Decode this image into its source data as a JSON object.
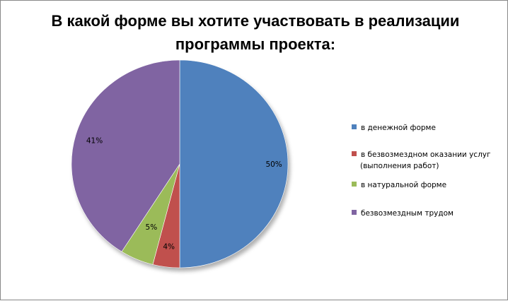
{
  "chart_data": {
    "type": "pie",
    "title": "В какой форме вы хотите участвовать в реализации программы проекта:",
    "categories": [
      "в денежной форме",
      "в безвозмездном оказании услуг (выполнения работ)",
      "в натуральной форме",
      "безвозмездным трудом"
    ],
    "values": [
      50,
      4,
      5,
      41
    ],
    "data_labels": [
      "50%",
      "4%",
      "5%",
      "41%"
    ],
    "colors": [
      "#4F81BD",
      "#C0504D",
      "#9BBB59",
      "#8064A2"
    ],
    "legend_position": "right"
  },
  "legend": [
    {
      "lines": [
        "в денежной форме"
      ]
    },
    {
      "lines": [
        "в безвозмездном оказании услуг",
        "(выполнения работ)"
      ]
    },
    {
      "lines": [
        "в натуральной форме"
      ]
    },
    {
      "lines": [
        "безвозмездным трудом"
      ]
    }
  ]
}
